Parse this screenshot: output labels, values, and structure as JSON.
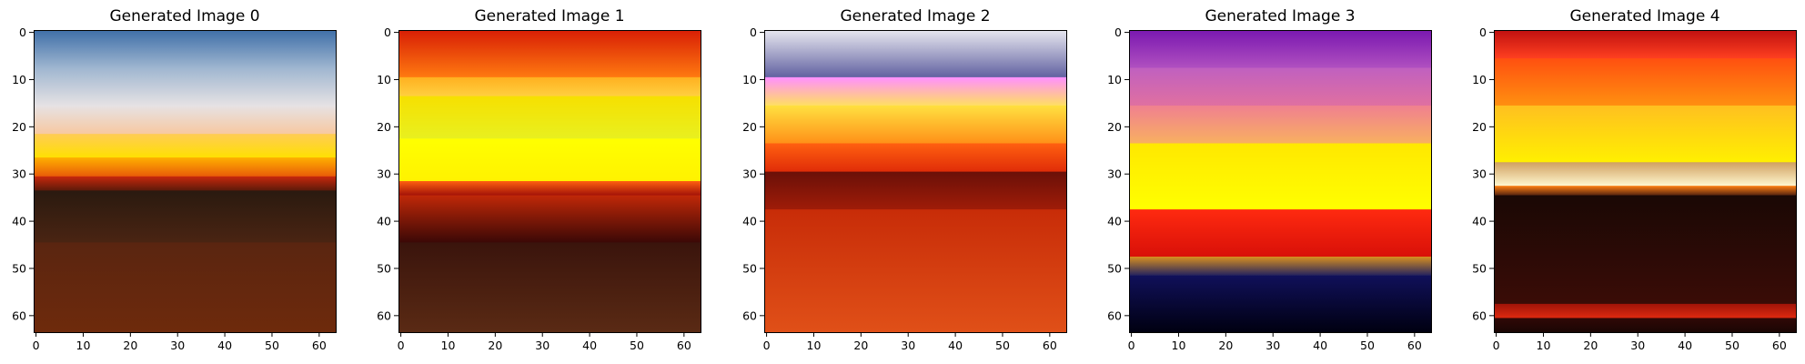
{
  "chart_data": {
    "type": "image-grid",
    "panels": [
      {
        "title": "Generated Image 0",
        "xlim": [
          0,
          63
        ],
        "ylim": [
          63,
          0
        ],
        "xticks": [
          0,
          10,
          20,
          30,
          40,
          50,
          60
        ],
        "yticks": [
          0,
          10,
          20,
          30,
          40,
          50,
          60
        ],
        "bands": [
          {
            "y0": 0,
            "y1": 8,
            "color_top": "#3f6fa8",
            "color_bottom": "#9fb6d0"
          },
          {
            "y0": 8,
            "y1": 16,
            "color_top": "#9fb6d0",
            "color_bottom": "#e6e2e4"
          },
          {
            "y0": 16,
            "y1": 22,
            "color_top": "#e6e2e4",
            "color_bottom": "#f7c8a0"
          },
          {
            "y0": 22,
            "y1": 27,
            "color_top": "#ffcc55",
            "color_bottom": "#ffe000"
          },
          {
            "y0": 27,
            "y1": 31,
            "color_top": "#ffb000",
            "color_bottom": "#e85a08"
          },
          {
            "y0": 31,
            "y1": 34,
            "color_top": "#c8280c",
            "color_bottom": "#5a1a0a"
          },
          {
            "y0": 34,
            "y1": 45,
            "color_top": "#2a1a10",
            "color_bottom": "#4a2412"
          },
          {
            "y0": 45,
            "y1": 64,
            "color_top": "#5a2510",
            "color_bottom": "#6e2a0c"
          }
        ]
      },
      {
        "title": "Generated Image 1",
        "xlim": [
          0,
          63
        ],
        "ylim": [
          63,
          0
        ],
        "xticks": [
          0,
          10,
          20,
          30,
          40,
          50,
          60
        ],
        "yticks": [
          0,
          10,
          20,
          30,
          40,
          50,
          60
        ],
        "bands": [
          {
            "y0": 0,
            "y1": 10,
            "color_top": "#d81e05",
            "color_bottom": "#ff7a10"
          },
          {
            "y0": 10,
            "y1": 14,
            "color_top": "#ffb020",
            "color_bottom": "#ffd040"
          },
          {
            "y0": 14,
            "y1": 23,
            "color_top": "#f6e000",
            "color_bottom": "#e8f020"
          },
          {
            "y0": 23,
            "y1": 32,
            "color_top": "#ffff00",
            "color_bottom": "#fff200"
          },
          {
            "y0": 32,
            "y1": 35,
            "color_top": "#ff6010",
            "color_bottom": "#a01008"
          },
          {
            "y0": 35,
            "y1": 45,
            "color_top": "#c02808",
            "color_bottom": "#3a0806"
          },
          {
            "y0": 45,
            "y1": 64,
            "color_top": "#3a140c",
            "color_bottom": "#5a2a14"
          }
        ]
      },
      {
        "title": "Generated Image 2",
        "xlim": [
          0,
          63
        ],
        "ylim": [
          63,
          0
        ],
        "xticks": [
          0,
          10,
          20,
          30,
          40,
          50,
          60
        ],
        "yticks": [
          0,
          10,
          20,
          30,
          40,
          50,
          60
        ],
        "bands": [
          {
            "y0": 0,
            "y1": 10,
            "color_top": "#e8e8f0",
            "color_bottom": "#6060a0"
          },
          {
            "y0": 10,
            "y1": 16,
            "color_top": "#ff90ff",
            "color_bottom": "#ffe060"
          },
          {
            "y0": 16,
            "y1": 24,
            "color_top": "#ffe040",
            "color_bottom": "#ff9018"
          },
          {
            "y0": 24,
            "y1": 30,
            "color_top": "#ff6010",
            "color_bottom": "#e02c08"
          },
          {
            "y0": 30,
            "y1": 38,
            "color_top": "#6a1008",
            "color_bottom": "#a01c08"
          },
          {
            "y0": 38,
            "y1": 64,
            "color_top": "#c82c08",
            "color_bottom": "#e05018"
          }
        ]
      },
      {
        "title": "Generated Image 3",
        "xlim": [
          0,
          63
        ],
        "ylim": [
          63,
          0
        ],
        "xticks": [
          0,
          10,
          20,
          30,
          40,
          50,
          60
        ],
        "yticks": [
          0,
          10,
          20,
          30,
          40,
          50,
          60
        ],
        "bands": [
          {
            "y0": 0,
            "y1": 8,
            "color_top": "#7a18b0",
            "color_bottom": "#b050c0"
          },
          {
            "y0": 8,
            "y1": 16,
            "color_top": "#c060c0",
            "color_bottom": "#e070a0"
          },
          {
            "y0": 16,
            "y1": 24,
            "color_top": "#f08090",
            "color_bottom": "#f8b060"
          },
          {
            "y0": 24,
            "y1": 38,
            "color_top": "#ffe800",
            "color_bottom": "#ffff00"
          },
          {
            "y0": 38,
            "y1": 48,
            "color_top": "#ff2a10",
            "color_bottom": "#d81008"
          },
          {
            "y0": 48,
            "y1": 52,
            "color_top": "#d89020",
            "color_bottom": "#202060"
          },
          {
            "y0": 52,
            "y1": 64,
            "color_top": "#10105a",
            "color_bottom": "#000010"
          }
        ]
      },
      {
        "title": "Generated Image 4",
        "xlim": [
          0,
          63
        ],
        "ylim": [
          63,
          0
        ],
        "xticks": [
          0,
          10,
          20,
          30,
          40,
          50,
          60
        ],
        "yticks": [
          0,
          10,
          20,
          30,
          40,
          50,
          60
        ],
        "bands": [
          {
            "y0": 0,
            "y1": 6,
            "color_top": "#c01010",
            "color_bottom": "#ff4020"
          },
          {
            "y0": 6,
            "y1": 16,
            "color_top": "#ff5010",
            "color_bottom": "#ff9010"
          },
          {
            "y0": 16,
            "y1": 28,
            "color_top": "#ffc020",
            "color_bottom": "#fff000"
          },
          {
            "y0": 28,
            "y1": 33,
            "color_top": "#d0a060",
            "color_bottom": "#fff8d0"
          },
          {
            "y0": 33,
            "y1": 35,
            "color_top": "#ff8010",
            "color_bottom": "#502010"
          },
          {
            "y0": 35,
            "y1": 58,
            "color_top": "#1a0805",
            "color_bottom": "#3a0c06"
          },
          {
            "y0": 58,
            "y1": 61,
            "color_top": "#a01408",
            "color_bottom": "#e02a10"
          },
          {
            "y0": 61,
            "y1": 64,
            "color_top": "#300806",
            "color_bottom": "#1a0604"
          }
        ]
      }
    ]
  }
}
